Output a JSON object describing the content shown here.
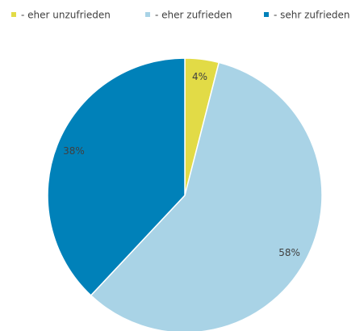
{
  "chart_data": {
    "type": "pie",
    "categories": [
      "- eher unzufrieden",
      "- eher zufrieden",
      "- sehr zufrieden"
    ],
    "values": [
      4,
      58,
      38
    ],
    "value_labels": [
      "4%",
      "58%",
      "38%"
    ],
    "colors": [
      "#e2db46",
      "#a9d3e6",
      "#0081b9"
    ],
    "legend": "top"
  }
}
